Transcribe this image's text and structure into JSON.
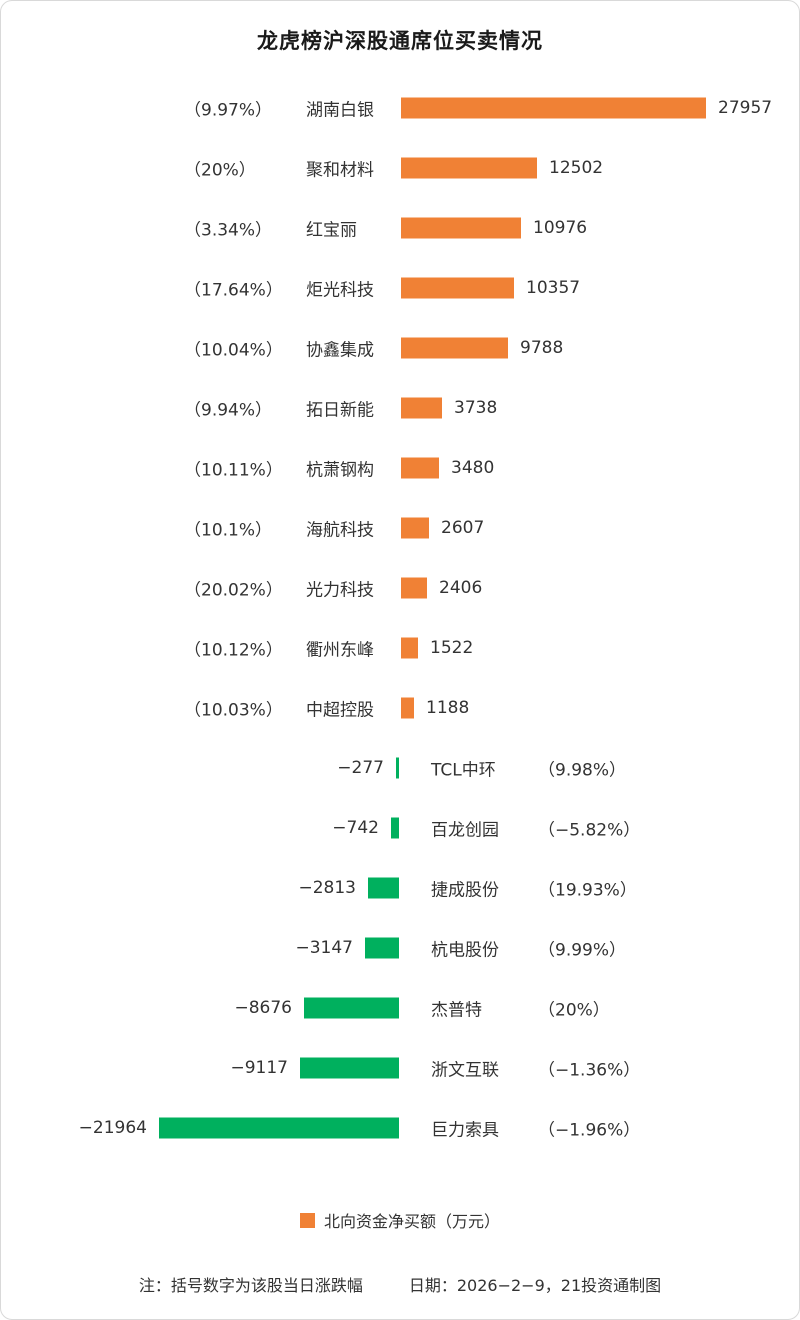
{
  "title": "龙虎榜沪深股通席位买卖情况",
  "legend": {
    "label": "北向资金净买额（万元）"
  },
  "note": {
    "left": "注：括号数字为该股当日涨跌幅",
    "right": "日期：2026−2−9，21投资通制图"
  },
  "chart_data": {
    "type": "bar",
    "orientation": "horizontal",
    "title": "龙虎榜沪深股通席位买卖情况",
    "value_unit": "万元",
    "axis_note": "zero baseline centered; positive bars extend right, negative bars extend left",
    "colors": {
      "positive": "#F08135",
      "negative": "#00B05E"
    },
    "series": [
      {
        "name": "湖南白银",
        "pct": "（9.97%）",
        "value": 27957,
        "label": "27957"
      },
      {
        "name": "聚和材料",
        "pct": "（20%）",
        "value": 12502,
        "label": "12502"
      },
      {
        "name": "红宝丽",
        "pct": "（3.34%）",
        "value": 10976,
        "label": "10976"
      },
      {
        "name": "炬光科技",
        "pct": "（17.64%）",
        "value": 10357,
        "label": "10357"
      },
      {
        "name": "协鑫集成",
        "pct": "（10.04%）",
        "value": 9788,
        "label": "9788"
      },
      {
        "name": "拓日新能",
        "pct": "（9.94%）",
        "value": 3738,
        "label": "3738"
      },
      {
        "name": "杭萧钢构",
        "pct": "（10.11%）",
        "value": 3480,
        "label": "3480"
      },
      {
        "name": "海航科技",
        "pct": "（10.1%）",
        "value": 2607,
        "label": "2607"
      },
      {
        "name": "光力科技",
        "pct": "（20.02%）",
        "value": 2406,
        "label": "2406"
      },
      {
        "name": "衢州东峰",
        "pct": "（10.12%）",
        "value": 1522,
        "label": "1522"
      },
      {
        "name": "中超控股",
        "pct": "（10.03%）",
        "value": 1188,
        "label": "1188"
      },
      {
        "name": "TCL中环",
        "pct": "（9.98%）",
        "value": -277,
        "label": "−277"
      },
      {
        "name": "百龙创园",
        "pct": "（−5.82%）",
        "value": -742,
        "label": "−742"
      },
      {
        "name": "捷成股份",
        "pct": "（19.93%）",
        "value": -2813,
        "label": "−2813"
      },
      {
        "name": "杭电股份",
        "pct": "（9.99%）",
        "value": -3147,
        "label": "−3147"
      },
      {
        "name": "杰普特",
        "pct": "（20%）",
        "value": -8676,
        "label": "−8676"
      },
      {
        "name": "浙文互联",
        "pct": "（−1.36%）",
        "value": -9117,
        "label": "−9117"
      },
      {
        "name": "巨力索具",
        "pct": "（−1.96%）",
        "value": -21964,
        "label": "−21964"
      }
    ]
  }
}
